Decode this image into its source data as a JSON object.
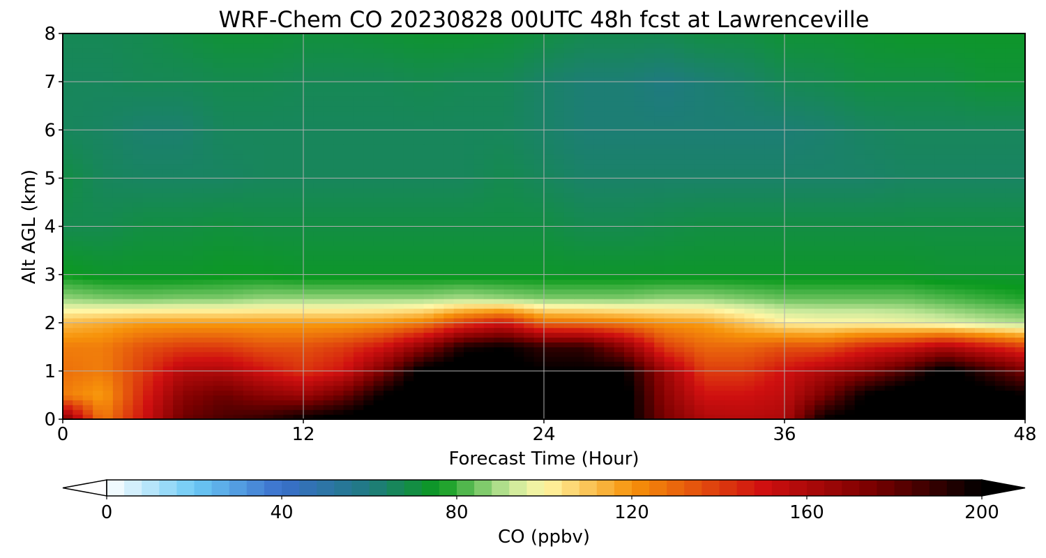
{
  "chart_data": {
    "type": "heatmap",
    "title": "WRF-Chem CO  20230828 00UTC 48h fcst at Lawrenceville",
    "xlabel": "Forecast Time (Hour)",
    "ylabel": "Alt AGL (km)",
    "xlim": [
      0,
      48
    ],
    "ylim": [
      0,
      8
    ],
    "x_ticks": [
      0,
      12,
      24,
      36,
      48
    ],
    "y_ticks": [
      0,
      1,
      2,
      3,
      4,
      5,
      6,
      7,
      8
    ],
    "grid": true,
    "colorbar": {
      "label": "CO  (ppbv)",
      "range": [
        0,
        200
      ],
      "ticks": [
        0,
        40,
        80,
        120,
        160,
        200
      ],
      "extend": "both",
      "stops": [
        {
          "v": 0,
          "c": "#ffffff"
        },
        {
          "v": 20,
          "c": "#6ccaf5"
        },
        {
          "v": 40,
          "c": "#3a6fcc"
        },
        {
          "v": 60,
          "c": "#1f7a80"
        },
        {
          "v": 76,
          "c": "#0b9a1e"
        },
        {
          "v": 92,
          "c": "#c6e89a"
        },
        {
          "v": 100,
          "c": "#fff7a6"
        },
        {
          "v": 120,
          "c": "#f7930a"
        },
        {
          "v": 150,
          "c": "#d01010"
        },
        {
          "v": 175,
          "c": "#7a0000"
        },
        {
          "v": 200,
          "c": "#000000"
        }
      ]
    },
    "hours": [
      0,
      2,
      4,
      6,
      8,
      10,
      12,
      14,
      16,
      18,
      20,
      22,
      24,
      26,
      28,
      30,
      32,
      34,
      36,
      38,
      40,
      42,
      44,
      46,
      48
    ],
    "layers_km": [
      0,
      0.5,
      1,
      1.5,
      2,
      2.5,
      3,
      4,
      5,
      6,
      7,
      8
    ],
    "co_ppbv": [
      [
        175,
        125,
        150,
        178,
        185,
        190,
        200,
        205,
        210,
        210,
        210,
        210,
        205,
        205,
        205,
        175,
        160,
        158,
        160,
        200,
        205,
        205,
        210,
        210,
        210
      ],
      [
        125,
        118,
        145,
        170,
        178,
        170,
        165,
        178,
        200,
        210,
        210,
        210,
        205,
        205,
        205,
        170,
        150,
        150,
        155,
        175,
        200,
        210,
        210,
        205,
        200
      ],
      [
        128,
        125,
        140,
        158,
        160,
        150,
        142,
        150,
        175,
        205,
        210,
        205,
        200,
        200,
        200,
        165,
        140,
        140,
        150,
        160,
        170,
        185,
        205,
        190,
        175
      ],
      [
        125,
        125,
        135,
        140,
        140,
        135,
        135,
        140,
        150,
        170,
        195,
        200,
        190,
        190,
        170,
        140,
        130,
        130,
        135,
        135,
        145,
        150,
        160,
        150,
        140
      ],
      [
        112,
        115,
        118,
        118,
        118,
        118,
        118,
        118,
        120,
        125,
        140,
        150,
        130,
        128,
        125,
        120,
        118,
        110,
        102,
        100,
        100,
        98,
        95,
        92,
        90
      ],
      [
        88,
        86,
        85,
        86,
        86,
        88,
        88,
        88,
        88,
        88,
        90,
        88,
        86,
        86,
        86,
        88,
        88,
        86,
        84,
        84,
        84,
        84,
        82,
        80,
        78
      ],
      [
        76,
        74,
        74,
        74,
        75,
        75,
        74,
        74,
        74,
        74,
        74,
        74,
        74,
        74,
        74,
        74,
        74,
        74,
        74,
        74,
        74,
        74,
        73,
        73,
        73
      ],
      [
        68,
        68,
        70,
        70,
        71,
        70,
        70,
        70,
        70,
        70,
        70,
        70,
        70,
        68,
        68,
        69,
        70,
        70,
        70,
        70,
        70,
        70,
        70,
        70,
        70
      ],
      [
        70,
        66,
        65,
        65,
        65,
        66,
        66,
        66,
        66,
        66,
        66,
        68,
        66,
        64,
        64,
        64,
        64,
        64,
        64,
        64,
        64,
        65,
        65,
        65,
        65
      ],
      [
        66,
        65,
        63,
        63,
        66,
        66,
        66,
        66,
        66,
        66,
        66,
        66,
        64,
        62,
        62,
        62,
        62,
        62,
        62,
        63,
        65,
        66,
        66,
        66,
        66
      ],
      [
        66,
        66,
        67,
        67,
        68,
        68,
        67,
        67,
        67,
        68,
        67,
        67,
        64,
        62,
        62,
        60,
        62,
        64,
        67,
        68,
        70,
        70,
        70,
        72,
        72
      ],
      [
        67,
        67,
        68,
        70,
        72,
        72,
        71,
        71,
        72,
        73,
        73,
        72,
        70,
        68,
        68,
        68,
        70,
        70,
        72,
        72,
        73,
        74,
        74,
        74,
        74
      ]
    ]
  }
}
